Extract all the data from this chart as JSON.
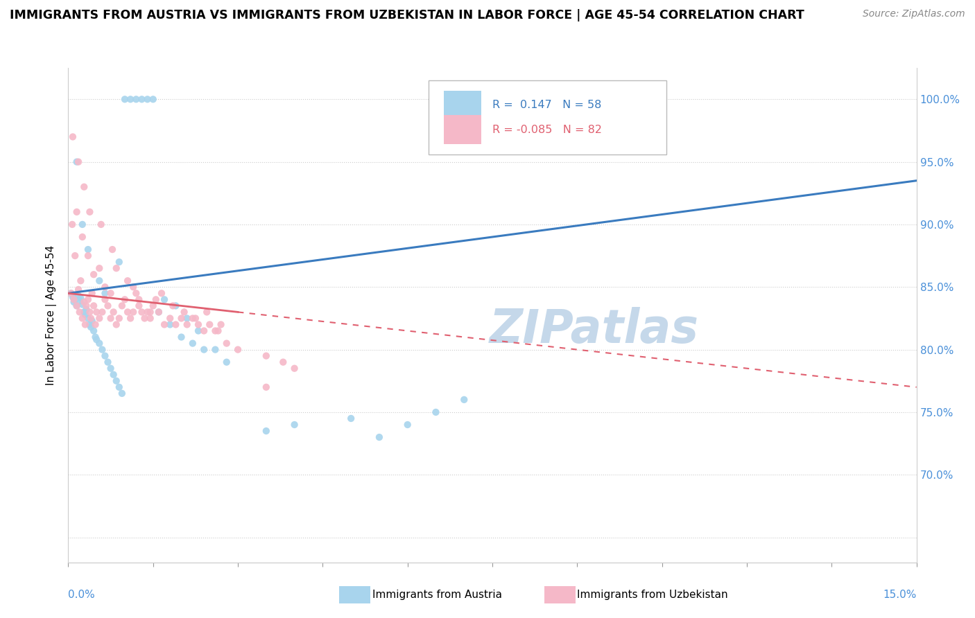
{
  "title": "IMMIGRANTS FROM AUSTRIA VS IMMIGRANTS FROM UZBEKISTAN IN LABOR FORCE | AGE 45-54 CORRELATION CHART",
  "source": "Source: ZipAtlas.com",
  "ylabel": "In Labor Force | Age 45-54",
  "xlim": [
    0.0,
    15.0
  ],
  "ylim": [
    63.0,
    102.5
  ],
  "yticks": [
    65.0,
    70.0,
    75.0,
    80.0,
    85.0,
    90.0,
    95.0,
    100.0
  ],
  "right_ytick_labels": [
    "",
    "70.0%",
    "75.0%",
    "80.0%",
    "85.0%",
    "90.0%",
    "95.0%",
    "100.0%"
  ],
  "austria_R": 0.147,
  "austria_N": 58,
  "uzbekistan_R": -0.085,
  "uzbekistan_N": 82,
  "austria_color": "#a8d4ed",
  "uzbekistan_color": "#f5b8c8",
  "austria_line_color": "#3a7bbf",
  "uzbekistan_line_color": "#e06070",
  "watermark": "ZIPatlas",
  "watermark_color": "#c5d8ea",
  "austria_line_x0": 0.0,
  "austria_line_y0": 84.5,
  "austria_line_x1": 15.0,
  "austria_line_y1": 93.5,
  "uzbekistan_line_x0": 0.0,
  "uzbekistan_line_y0": 84.5,
  "uzbekistan_line_x1": 15.0,
  "uzbekistan_line_y1": 77.0,
  "uzbekistan_solid_end": 3.0,
  "austria_scatter_x": [
    0.05,
    0.08,
    0.1,
    0.12,
    0.15,
    0.18,
    0.2,
    0.22,
    0.25,
    0.28,
    0.3,
    0.32,
    0.35,
    0.38,
    0.4,
    0.42,
    0.45,
    0.48,
    0.5,
    0.55,
    0.6,
    0.65,
    0.7,
    0.75,
    0.8,
    0.85,
    0.9,
    0.95,
    1.0,
    1.1,
    1.2,
    1.3,
    1.4,
    1.5,
    1.6,
    1.7,
    1.8,
    1.9,
    2.0,
    2.1,
    2.2,
    2.3,
    2.4,
    2.6,
    2.8,
    3.5,
    4.0,
    5.0,
    5.5,
    6.0,
    6.5,
    7.0,
    0.15,
    0.25,
    0.35,
    0.55,
    0.65,
    0.9
  ],
  "austria_scatter_y": [
    84.5,
    84.2,
    83.8,
    84.0,
    83.5,
    84.3,
    83.9,
    84.1,
    83.6,
    83.0,
    82.8,
    83.2,
    82.5,
    82.0,
    81.8,
    82.3,
    81.5,
    81.0,
    80.8,
    80.5,
    80.0,
    79.5,
    79.0,
    78.5,
    78.0,
    77.5,
    77.0,
    76.5,
    100.0,
    100.0,
    100.0,
    100.0,
    100.0,
    100.0,
    83.0,
    84.0,
    82.0,
    83.5,
    81.0,
    82.5,
    80.5,
    81.5,
    80.0,
    80.0,
    79.0,
    73.5,
    74.0,
    74.5,
    73.0,
    74.0,
    75.0,
    76.0,
    95.0,
    90.0,
    88.0,
    85.5,
    84.5,
    87.0
  ],
  "uzbekistan_scatter_x": [
    0.05,
    0.07,
    0.1,
    0.12,
    0.15,
    0.18,
    0.2,
    0.22,
    0.25,
    0.28,
    0.3,
    0.32,
    0.35,
    0.38,
    0.4,
    0.42,
    0.45,
    0.48,
    0.5,
    0.55,
    0.6,
    0.65,
    0.7,
    0.75,
    0.8,
    0.85,
    0.9,
    0.95,
    1.0,
    1.05,
    1.1,
    1.15,
    1.2,
    1.25,
    1.3,
    1.35,
    1.4,
    1.45,
    1.5,
    1.6,
    1.7,
    1.8,
    1.9,
    2.0,
    2.1,
    2.2,
    2.3,
    2.4,
    2.5,
    2.6,
    2.7,
    2.8,
    3.0,
    3.5,
    3.8,
    4.0,
    0.15,
    0.25,
    0.35,
    0.45,
    0.55,
    0.65,
    0.75,
    0.85,
    1.05,
    1.25,
    1.45,
    1.65,
    1.85,
    2.05,
    2.25,
    2.45,
    2.65,
    0.08,
    0.18,
    0.28,
    0.38,
    0.58,
    0.78,
    1.15,
    1.55,
    3.5
  ],
  "uzbekistan_scatter_y": [
    84.5,
    90.0,
    84.0,
    87.5,
    83.5,
    84.8,
    83.0,
    85.5,
    82.5,
    83.8,
    82.0,
    83.5,
    84.0,
    83.0,
    82.5,
    84.5,
    83.5,
    82.0,
    83.0,
    82.5,
    83.0,
    84.0,
    83.5,
    82.5,
    83.0,
    82.0,
    82.5,
    83.5,
    84.0,
    83.0,
    82.5,
    83.0,
    84.5,
    83.5,
    83.0,
    82.5,
    83.0,
    82.5,
    83.5,
    83.0,
    82.0,
    82.5,
    82.0,
    82.5,
    82.0,
    82.5,
    82.0,
    81.5,
    82.0,
    81.5,
    82.0,
    80.5,
    80.0,
    79.5,
    79.0,
    78.5,
    91.0,
    89.0,
    87.5,
    86.0,
    86.5,
    85.0,
    84.5,
    86.5,
    85.5,
    84.0,
    83.0,
    84.5,
    83.5,
    83.0,
    82.5,
    83.0,
    81.5,
    97.0,
    95.0,
    93.0,
    91.0,
    90.0,
    88.0,
    85.0,
    84.0,
    77.0
  ]
}
